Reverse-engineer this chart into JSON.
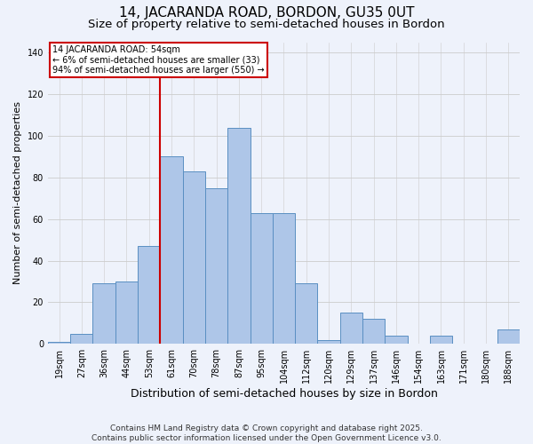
{
  "title": "14, JACARANDA ROAD, BORDON, GU35 0UT",
  "subtitle": "Size of property relative to semi-detached houses in Bordon",
  "xlabel": "Distribution of semi-detached houses by size in Bordon",
  "ylabel": "Number of semi-detached properties",
  "footnote1": "Contains HM Land Registry data © Crown copyright and database right 2025.",
  "footnote2": "Contains public sector information licensed under the Open Government Licence v3.0.",
  "bin_labels": [
    "19sqm",
    "27sqm",
    "36sqm",
    "44sqm",
    "53sqm",
    "61sqm",
    "70sqm",
    "78sqm",
    "87sqm",
    "95sqm",
    "104sqm",
    "112sqm",
    "120sqm",
    "129sqm",
    "137sqm",
    "146sqm",
    "154sqm",
    "163sqm",
    "171sqm",
    "180sqm",
    "188sqm"
  ],
  "bar_heights": [
    1,
    5,
    29,
    30,
    47,
    90,
    83,
    75,
    104,
    63,
    63,
    29,
    2,
    15,
    12,
    4,
    0,
    4,
    0,
    0,
    7
  ],
  "bar_color": "#aec6e8",
  "bar_edgecolor": "#5a8fc2",
  "property_label": "14 JACARANDA ROAD: 54sqm",
  "pct_smaller": 6,
  "pct_larger": 94,
  "n_smaller": 33,
  "n_larger": 550,
  "annotation_box_color": "#cc0000",
  "ylim": [
    0,
    145
  ],
  "yticks": [
    0,
    20,
    40,
    60,
    80,
    100,
    120,
    140
  ],
  "background_color": "#eef2fb",
  "grid_color": "#cccccc",
  "title_fontsize": 11,
  "subtitle_fontsize": 9.5,
  "xlabel_fontsize": 9,
  "ylabel_fontsize": 8,
  "tick_fontsize": 7,
  "annotation_fontsize": 7,
  "footnote_fontsize": 6.5
}
